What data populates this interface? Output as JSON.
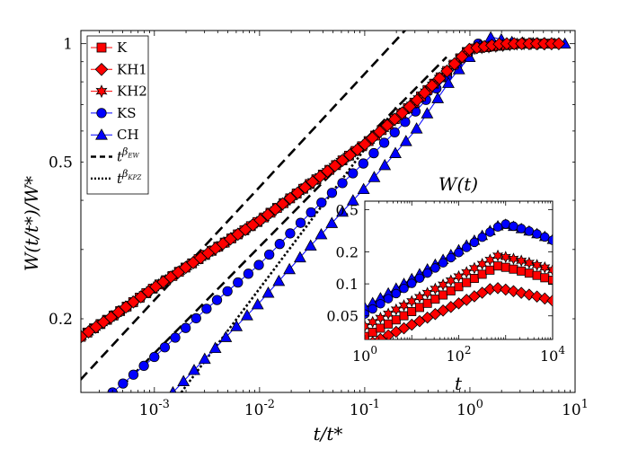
{
  "chart_data": {
    "type": "scatter",
    "main": {
      "xscale": "log",
      "yscale": "log",
      "xlim": [
        0.0002,
        10
      ],
      "ylim": [
        0.13,
        1.08
      ],
      "xlabel": "t/t*",
      "ylabel": "W(t/t*)/W*",
      "xticks": [
        0.001,
        0.01,
        0.1,
        1,
        10
      ],
      "xtick_labels": [
        {
          "base": "10",
          "exp": "-3"
        },
        {
          "base": "10",
          "exp": "-2"
        },
        {
          "base": "10",
          "exp": "-1"
        },
        {
          "base": "10",
          "exp": "0"
        },
        {
          "base": "10",
          "exp": "1"
        }
      ],
      "yticks": [
        0.2,
        0.5,
        1
      ],
      "ytick_labels": [
        "0.2",
        "0.5",
        "1"
      ],
      "grid": false,
      "legend_position": "top-left",
      "series": [
        {
          "name": "K",
          "marker": "square",
          "color": "#ff0000",
          "x": [
            0.0002,
            0.0004,
            0.001,
            0.003,
            0.01,
            0.03,
            0.1,
            0.3,
            1,
            3,
            6
          ],
          "y": [
            0.18,
            0.203,
            0.24,
            0.29,
            0.355,
            0.44,
            0.555,
            0.71,
            0.97,
            1.0,
            1.0
          ]
        },
        {
          "name": "KH1",
          "marker": "diamond",
          "color": "#ff0000",
          "x": [
            0.0002,
            0.0004,
            0.001,
            0.003,
            0.01,
            0.03,
            0.1,
            0.3,
            1,
            2,
            3,
            5,
            7
          ],
          "y": [
            0.18,
            0.203,
            0.24,
            0.29,
            0.355,
            0.44,
            0.555,
            0.71,
            0.97,
            1.0,
            1.0,
            1.0,
            1.0
          ]
        },
        {
          "name": "KH2",
          "marker": "hexagram",
          "color": "#ff0000",
          "x": [
            0.0002,
            0.0004,
            0.001,
            0.003,
            0.01,
            0.03,
            0.1,
            0.3,
            1,
            3,
            6
          ],
          "y": [
            0.18,
            0.203,
            0.24,
            0.29,
            0.355,
            0.44,
            0.555,
            0.71,
            0.97,
            1.0,
            1.0
          ]
        },
        {
          "name": "KS",
          "marker": "circle",
          "color": "#0000ff",
          "x": [
            0.0004,
            0.001,
            0.003,
            0.01,
            0.03,
            0.1,
            0.3,
            0.7,
            1.2
          ],
          "y": [
            0.13,
            0.16,
            0.21,
            0.275,
            0.37,
            0.5,
            0.67,
            0.86,
            1.0
          ]
        },
        {
          "name": "CH",
          "marker": "triangle",
          "color": "#0000ff",
          "x": [
            0.0015,
            0.003,
            0.01,
            0.03,
            0.1,
            0.3,
            0.7,
            1.2,
            1.6,
            2.5,
            5,
            8
          ],
          "y": [
            0.13,
            0.158,
            0.22,
            0.305,
            0.43,
            0.6,
            0.83,
            0.98,
            1.04,
            1.01,
            1.0,
            1.0
          ]
        }
      ],
      "reference_lines": [
        {
          "name": "t^{β_EW}",
          "style": "dashed",
          "points": [
            [
              0.0001,
              0.115
            ],
            [
              0.3,
              1.15
            ]
          ]
        },
        {
          "name": "t^{β_EW}",
          "style": "dashed",
          "points": [
            [
              0.0003,
              0.118
            ],
            [
              0.6,
              0.925
            ]
          ]
        },
        {
          "name": "t^{β_KPZ}",
          "style": "dotted",
          "points": [
            [
              0.0018,
              0.13
            ],
            [
              0.2,
              0.69
            ]
          ]
        }
      ]
    },
    "inset": {
      "title": "W(t)",
      "xlabel": "t",
      "xscale": "log",
      "yscale": "log",
      "xlim": [
        1,
        10000
      ],
      "ylim": [
        0.03,
        0.6
      ],
      "xtick_labels": [
        {
          "base": "10",
          "exp": "0"
        },
        {
          "base": "10",
          "exp": "2"
        },
        {
          "base": "10",
          "exp": "4"
        }
      ],
      "ytick_labels": [
        "0.5",
        "0.2",
        "0.1",
        "0.05"
      ],
      "yticks": [
        0.5,
        0.2,
        0.1,
        0.05
      ],
      "series": [
        {
          "name": "CH",
          "marker": "triangle",
          "color": "#0000ff",
          "x0": 1,
          "y0": 0.06,
          "sat": 0.5,
          "rise": 1.0
        },
        {
          "name": "KS",
          "marker": "circle",
          "color": "#0000ff",
          "x0": 1,
          "y0": 0.052,
          "sat": 0.5,
          "rise": 1.2
        },
        {
          "name": "KH2",
          "marker": "hexagram",
          "color": "#ff0000",
          "x0": 1,
          "y0": 0.04,
          "sat": 0.25,
          "rise": 1.6
        },
        {
          "name": "K",
          "marker": "square",
          "color": "#ff0000",
          "x0": 1,
          "y0": 0.032,
          "sat": 0.2,
          "rise": 1.6
        },
        {
          "name": "KH1",
          "marker": "diamond",
          "color": "#ff0000",
          "x0": 1,
          "y0": 0.026,
          "sat": 0.125,
          "rise": 1.6
        }
      ]
    },
    "legend": [
      {
        "label": "K",
        "marker": "square",
        "color": "#ff0000",
        "line": "solid"
      },
      {
        "label": "KH1",
        "marker": "diamond",
        "color": "#ff0000",
        "line": "solid"
      },
      {
        "label": "KH2",
        "marker": "hexagram",
        "color": "#ff0000",
        "line": "solid"
      },
      {
        "label": "KS",
        "marker": "circle",
        "color": "#0000ff",
        "line": "solid"
      },
      {
        "label": "CH",
        "marker": "triangle",
        "color": "#0000ff",
        "line": "solid"
      },
      {
        "label": "t",
        "sup": "β",
        "subsup": "EW",
        "marker": "none",
        "color": "#000000",
        "line": "dashed"
      },
      {
        "label": "t",
        "sup": "β",
        "subsup": "KPZ",
        "marker": "none",
        "color": "#000000",
        "line": "dotted"
      }
    ]
  }
}
